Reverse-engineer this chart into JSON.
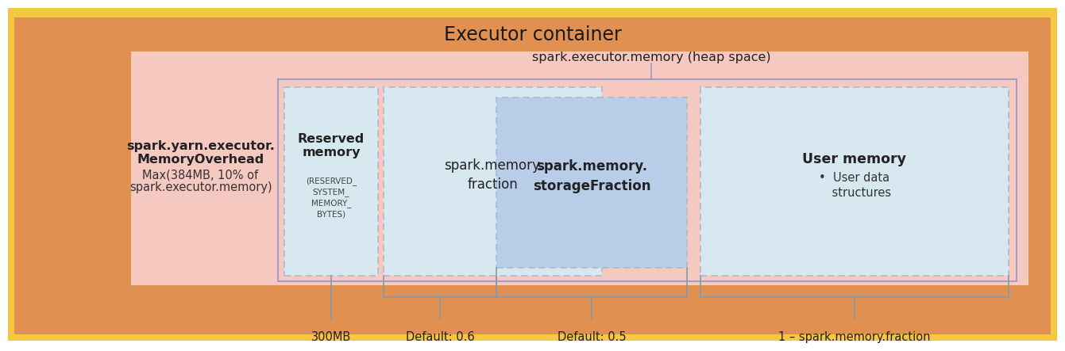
{
  "title": "Executor container",
  "bg_yellow": "#F5C842",
  "bg_orange": "#E09050",
  "bg_pink": "#F5C8C0",
  "color_reserved_box": "#D8E8F0",
  "color_fraction_box": "#D8E8F0",
  "color_storage_box": "#B8CEE8",
  "color_user_box": "#D8E8F0",
  "overhead_line1": "spark.yarn.executor.",
  "overhead_line2": "MemoryOverhead",
  "overhead_line3": "Max(384MB, 10% of",
  "overhead_line4": "spark.executor.memory)",
  "heap_label": "spark.executor.memory (heap space)",
  "reserved_title": "Reserved\nmemory",
  "reserved_sub": "(RESERVED_\nSYSTEM_\nMEMORY_\nBYTES)",
  "fraction_label": "spark.memory.\nfraction",
  "storage_label": "spark.memory.\nstorageFraction",
  "user_title": "User memory",
  "user_sub": "•  User data\n    structures",
  "ann_300mb": "300MB",
  "ann_06": "Default: 0.6",
  "ann_05": "Default: 0.5",
  "ann_userfrac": "1 – spark.memory.fraction",
  "line_color": "#8899AA",
  "border_dashed": "#AABBCC",
  "border_solid_blue": "#9999CC"
}
